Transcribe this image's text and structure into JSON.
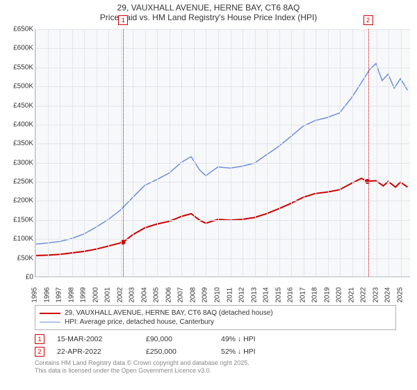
{
  "title": {
    "line1": "29, VAUXHALL AVENUE, HERNE BAY, CT6 8AQ",
    "line2": "Price paid vs. HM Land Registry's House Price Index (HPI)"
  },
  "chart": {
    "type": "line",
    "background_color": "#f7f8fa",
    "grid_color": "#e3e5ea",
    "axis_color": "#b8b8b8",
    "xlim": [
      1995,
      2025.8
    ],
    "ylim": [
      0,
      650000
    ],
    "ytick_step": 50000,
    "yticks": [
      "£0",
      "£50K",
      "£100K",
      "£150K",
      "£200K",
      "£250K",
      "£300K",
      "£350K",
      "£400K",
      "£450K",
      "£500K",
      "£550K",
      "£600K",
      "£650K"
    ],
    "xticks": [
      1995,
      1996,
      1997,
      1998,
      1999,
      2000,
      2001,
      2002,
      2003,
      2004,
      2005,
      2006,
      2007,
      2008,
      2009,
      2010,
      2011,
      2012,
      2013,
      2014,
      2015,
      2016,
      2017,
      2018,
      2019,
      2020,
      2021,
      2022,
      2023,
      2024,
      2025
    ],
    "series": [
      {
        "name": "price_paid",
        "label": "29, VAUXHALL AVENUE, HERNE BAY, CT6 8AQ (detached house)",
        "color": "#cc0000",
        "width": 2,
        "data": [
          [
            1995,
            55000
          ],
          [
            1996,
            56000
          ],
          [
            1997,
            58000
          ],
          [
            1998,
            62000
          ],
          [
            1999,
            66000
          ],
          [
            2000,
            72000
          ],
          [
            2001,
            80000
          ],
          [
            2002.2,
            90000
          ],
          [
            2003,
            110000
          ],
          [
            2004,
            128000
          ],
          [
            2005,
            138000
          ],
          [
            2006,
            145000
          ],
          [
            2007,
            158000
          ],
          [
            2007.8,
            165000
          ],
          [
            2008.5,
            148000
          ],
          [
            2009,
            140000
          ],
          [
            2010,
            150000
          ],
          [
            2011,
            148000
          ],
          [
            2012,
            150000
          ],
          [
            2013,
            155000
          ],
          [
            2014,
            165000
          ],
          [
            2015,
            178000
          ],
          [
            2016,
            192000
          ],
          [
            2017,
            208000
          ],
          [
            2018,
            218000
          ],
          [
            2019,
            222000
          ],
          [
            2020,
            228000
          ],
          [
            2021,
            245000
          ],
          [
            2021.8,
            258000
          ],
          [
            2022.3,
            250000
          ],
          [
            2023,
            252000
          ],
          [
            2023.6,
            238000
          ],
          [
            2024,
            250000
          ],
          [
            2024.6,
            235000
          ],
          [
            2025,
            248000
          ],
          [
            2025.6,
            235000
          ]
        ]
      },
      {
        "name": "hpi",
        "label": "HPI: Average price, detached house, Canterbury",
        "color": "#6a8fd8",
        "width": 1.5,
        "data": [
          [
            1995,
            85000
          ],
          [
            1996,
            88000
          ],
          [
            1997,
            92000
          ],
          [
            1998,
            100000
          ],
          [
            1999,
            112000
          ],
          [
            2000,
            130000
          ],
          [
            2001,
            150000
          ],
          [
            2002,
            175000
          ],
          [
            2003,
            208000
          ],
          [
            2004,
            240000
          ],
          [
            2005,
            255000
          ],
          [
            2006,
            272000
          ],
          [
            2007,
            300000
          ],
          [
            2007.8,
            315000
          ],
          [
            2008.5,
            280000
          ],
          [
            2009,
            265000
          ],
          [
            2010,
            288000
          ],
          [
            2011,
            285000
          ],
          [
            2012,
            290000
          ],
          [
            2013,
            298000
          ],
          [
            2014,
            320000
          ],
          [
            2015,
            342000
          ],
          [
            2016,
            368000
          ],
          [
            2017,
            395000
          ],
          [
            2018,
            410000
          ],
          [
            2019,
            418000
          ],
          [
            2020,
            430000
          ],
          [
            2021,
            470000
          ],
          [
            2021.8,
            510000
          ],
          [
            2022.5,
            545000
          ],
          [
            2023,
            560000
          ],
          [
            2023.5,
            515000
          ],
          [
            2024,
            532000
          ],
          [
            2024.5,
            495000
          ],
          [
            2025,
            520000
          ],
          [
            2025.6,
            490000
          ]
        ]
      }
    ],
    "markers": [
      {
        "n": "1",
        "x": 2002.2,
        "y": 90000
      },
      {
        "n": "2",
        "x": 2022.3,
        "y": 250000
      }
    ],
    "label_fontsize": 10
  },
  "legend": {
    "items": [
      {
        "color": "#cc0000",
        "width": 2,
        "label": "29, VAUXHALL AVENUE, HERNE BAY, CT6 8AQ (detached house)"
      },
      {
        "color": "#6a8fd8",
        "width": 1.5,
        "label": "HPI: Average price, detached house, Canterbury"
      }
    ]
  },
  "sales": [
    {
      "n": "1",
      "date": "15-MAR-2002",
      "price": "£90,000",
      "pct": "49% ↓ HPI"
    },
    {
      "n": "2",
      "date": "22-APR-2022",
      "price": "£250,000",
      "pct": "52% ↓ HPI"
    }
  ],
  "footer": {
    "line1": "Contains HM Land Registry data © Crown copyright and database right 2025.",
    "line2": "This data is licensed under the Open Government Licence v3.0."
  }
}
